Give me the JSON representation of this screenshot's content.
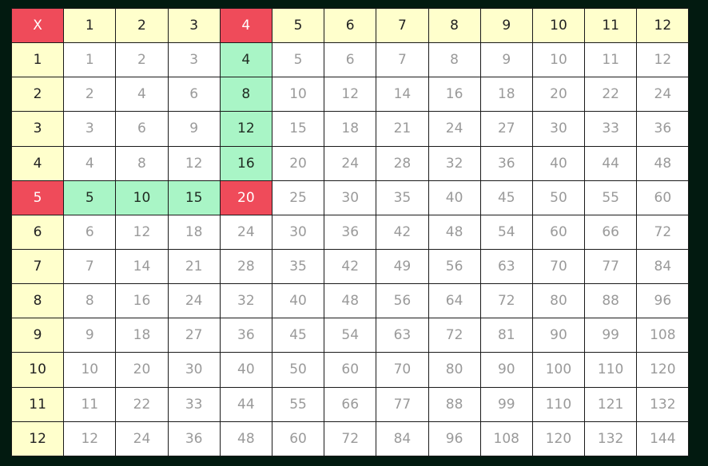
{
  "table": {
    "corner_label": "X",
    "column_headers": [
      "1",
      "2",
      "3",
      "4",
      "5",
      "6",
      "7",
      "8",
      "9",
      "10",
      "11",
      "12"
    ],
    "row_headers": [
      "1",
      "2",
      "3",
      "4",
      "5",
      "6",
      "7",
      "8",
      "9",
      "10",
      "11",
      "12"
    ],
    "cells": [
      [
        "1",
        "2",
        "3",
        "4",
        "5",
        "6",
        "7",
        "8",
        "9",
        "10",
        "11",
        "12"
      ],
      [
        "2",
        "4",
        "6",
        "8",
        "10",
        "12",
        "14",
        "16",
        "18",
        "20",
        "22",
        "24"
      ],
      [
        "3",
        "6",
        "9",
        "12",
        "15",
        "18",
        "21",
        "24",
        "27",
        "30",
        "33",
        "36"
      ],
      [
        "4",
        "8",
        "12",
        "16",
        "20",
        "24",
        "28",
        "32",
        "36",
        "40",
        "44",
        "48"
      ],
      [
        "5",
        "10",
        "15",
        "20",
        "25",
        "30",
        "35",
        "40",
        "45",
        "50",
        "55",
        "60"
      ],
      [
        "6",
        "12",
        "18",
        "24",
        "30",
        "36",
        "42",
        "48",
        "54",
        "60",
        "66",
        "72"
      ],
      [
        "7",
        "14",
        "21",
        "28",
        "35",
        "42",
        "49",
        "56",
        "63",
        "70",
        "77",
        "84"
      ],
      [
        "8",
        "16",
        "24",
        "32",
        "40",
        "48",
        "56",
        "64",
        "72",
        "80",
        "88",
        "96"
      ],
      [
        "9",
        "18",
        "27",
        "36",
        "45",
        "54",
        "63",
        "72",
        "81",
        "90",
        "99",
        "108"
      ],
      [
        "10",
        "20",
        "30",
        "40",
        "50",
        "60",
        "70",
        "80",
        "90",
        "100",
        "110",
        "120"
      ],
      [
        "11",
        "22",
        "33",
        "44",
        "55",
        "66",
        "77",
        "88",
        "99",
        "110",
        "121",
        "132"
      ],
      [
        "12",
        "24",
        "36",
        "48",
        "60",
        "72",
        "84",
        "96",
        "108",
        "120",
        "132",
        "144"
      ]
    ],
    "selected_row": 5,
    "selected_col": 4,
    "colors": {
      "header_bg": "#ffffcc",
      "selected_bg": "#ef4b5a",
      "path_bg": "#a9f5c6",
      "cell_bg": "#ffffff",
      "cell_text": "#9a9a9a",
      "page_bg": "#021a10"
    }
  }
}
